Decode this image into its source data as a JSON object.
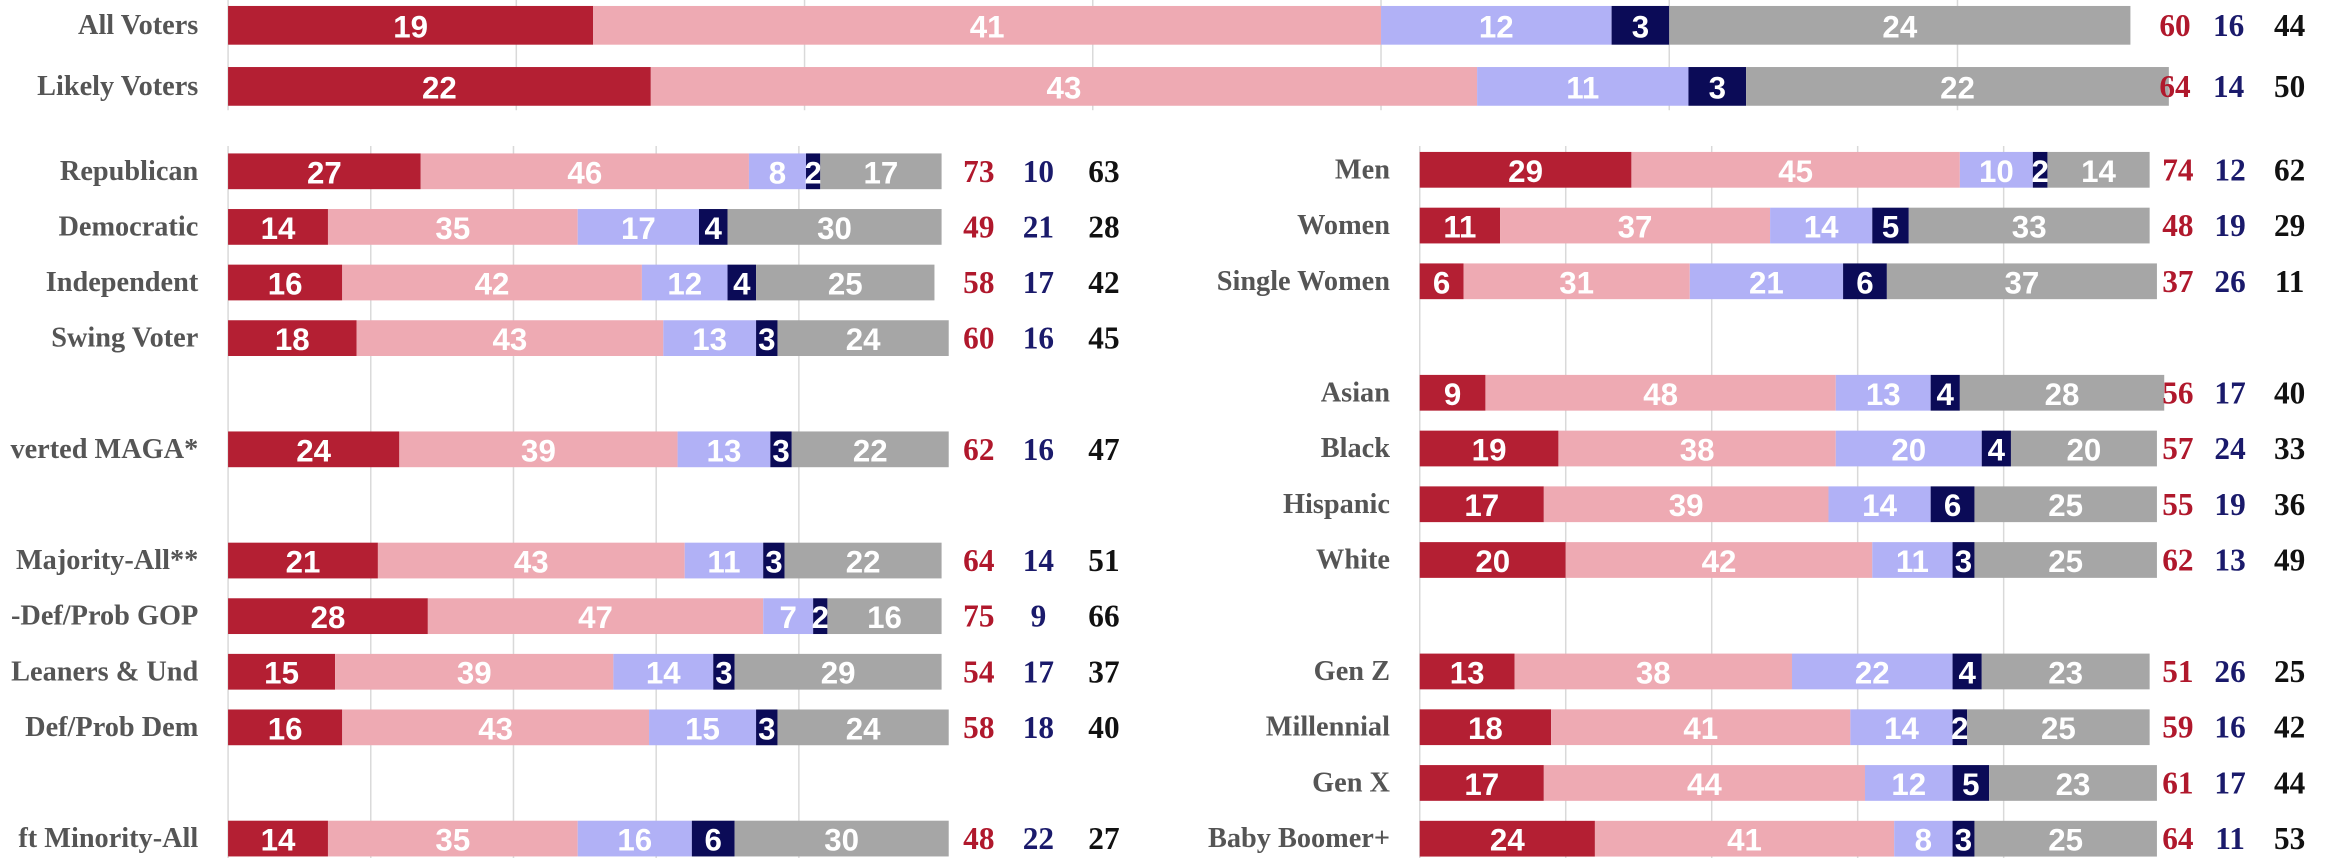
{
  "chart_data": [
    {
      "type": "bar",
      "orientation": "horizontal",
      "stacked": true,
      "grid": true,
      "xlim": [
        0,
        100
      ],
      "xticks": [
        0,
        15,
        30,
        45,
        60,
        75,
        90
      ],
      "categories": [
        "All Voters",
        "Likely Voters"
      ],
      "series": [
        {
          "color": "#b41f33",
          "values": [
            19,
            22
          ]
        },
        {
          "color": "#eeaab3",
          "values": [
            41,
            43
          ]
        },
        {
          "color": "#b1b1f6",
          "values": [
            12,
            11
          ]
        },
        {
          "color": "#0b0b57",
          "values": [
            3,
            3
          ]
        },
        {
          "color": "#a6a6a6",
          "values": [
            24,
            22
          ]
        }
      ],
      "summary": [
        {
          "color": "#b0182c",
          "values": [
            60,
            64
          ]
        },
        {
          "color": "#1a1a6b",
          "values": [
            16,
            14
          ]
        },
        {
          "color": "#111111",
          "values": [
            44,
            50
          ]
        }
      ]
    },
    {
      "type": "bar",
      "orientation": "horizontal",
      "stacked": true,
      "grid": true,
      "xlim": [
        0,
        100
      ],
      "xticks": [
        0,
        20,
        40,
        60,
        80
      ],
      "categories": [
        "Republican",
        "Democratic",
        "Independent",
        "Swing Voter",
        null,
        "verted MAGA*",
        null,
        "Majority-All**",
        "-Def/Prob GOP",
        "Leaners & Und",
        "Def/Prob Dem",
        null,
        "ft Minority-All"
      ],
      "series": [
        {
          "color": "#b41f33",
          "values": [
            27,
            14,
            16,
            18,
            null,
            24,
            null,
            21,
            28,
            15,
            16,
            null,
            14
          ]
        },
        {
          "color": "#eeaab3",
          "values": [
            46,
            35,
            42,
            43,
            null,
            39,
            null,
            43,
            47,
            39,
            43,
            null,
            35
          ]
        },
        {
          "color": "#b1b1f6",
          "values": [
            8,
            17,
            12,
            13,
            null,
            13,
            null,
            11,
            7,
            14,
            15,
            null,
            16
          ]
        },
        {
          "color": "#0b0b57",
          "values": [
            2,
            4,
            4,
            3,
            null,
            3,
            null,
            3,
            2,
            3,
            3,
            null,
            6
          ]
        },
        {
          "color": "#a6a6a6",
          "values": [
            17,
            30,
            25,
            24,
            null,
            22,
            null,
            22,
            16,
            29,
            24,
            null,
            30
          ]
        }
      ],
      "summary": [
        {
          "color": "#b0182c",
          "values": [
            73,
            49,
            58,
            60,
            null,
            62,
            null,
            64,
            75,
            54,
            58,
            null,
            48
          ]
        },
        {
          "color": "#1a1a6b",
          "values": [
            10,
            21,
            17,
            16,
            null,
            16,
            null,
            14,
            9,
            17,
            18,
            null,
            22
          ]
        },
        {
          "color": "#111111",
          "values": [
            63,
            28,
            42,
            45,
            null,
            47,
            null,
            51,
            66,
            37,
            40,
            null,
            27
          ]
        }
      ]
    },
    {
      "type": "bar",
      "orientation": "horizontal",
      "stacked": true,
      "grid": true,
      "xlim": [
        0,
        100
      ],
      "xticks": [
        0,
        20,
        40,
        60,
        80
      ],
      "categories": [
        "Men",
        "Women",
        "Single Women",
        null,
        "Asian",
        "Black",
        "Hispanic",
        "White",
        null,
        "Gen Z",
        "Millennial",
        "Gen X",
        "Baby Boomer+"
      ],
      "series": [
        {
          "color": "#b41f33",
          "values": [
            29,
            11,
            6,
            null,
            9,
            19,
            17,
            20,
            null,
            13,
            18,
            17,
            24
          ]
        },
        {
          "color": "#eeaab3",
          "values": [
            45,
            37,
            31,
            null,
            48,
            38,
            39,
            42,
            null,
            38,
            41,
            44,
            41
          ]
        },
        {
          "color": "#b1b1f6",
          "values": [
            10,
            14,
            21,
            null,
            13,
            20,
            14,
            11,
            null,
            22,
            14,
            12,
            8
          ]
        },
        {
          "color": "#0b0b57",
          "values": [
            2,
            5,
            6,
            null,
            4,
            4,
            6,
            3,
            null,
            4,
            2,
            5,
            3
          ]
        },
        {
          "color": "#a6a6a6",
          "values": [
            14,
            33,
            37,
            null,
            28,
            20,
            25,
            25,
            null,
            23,
            25,
            23,
            25
          ]
        }
      ],
      "summary": [
        {
          "color": "#b0182c",
          "values": [
            74,
            48,
            37,
            null,
            56,
            57,
            55,
            62,
            null,
            51,
            59,
            61,
            64
          ]
        },
        {
          "color": "#1a1a6b",
          "values": [
            12,
            19,
            26,
            null,
            17,
            24,
            19,
            13,
            null,
            26,
            16,
            17,
            11
          ]
        },
        {
          "color": "#111111",
          "values": [
            62,
            29,
            11,
            null,
            40,
            33,
            36,
            49,
            null,
            25,
            42,
            44,
            53
          ]
        }
      ]
    }
  ]
}
